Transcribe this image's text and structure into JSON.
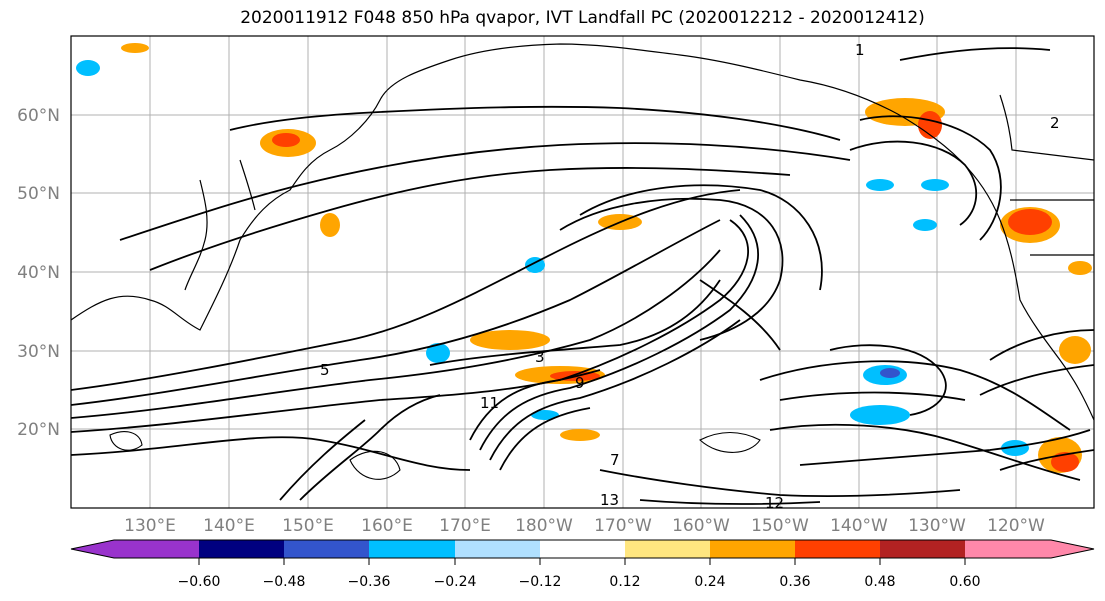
{
  "title": "2020011912 F048 850 hPa qvapor, IVT Landfall PC (2020012212 - 2020012412)",
  "map": {
    "lat_labels": [
      "60°N",
      "50°N",
      "40°N",
      "30°N",
      "20°N"
    ],
    "lon_labels": [
      "130°E",
      "140°E",
      "150°E",
      "160°E",
      "170°E",
      "180°W",
      "170°W",
      "160°W",
      "150°W",
      "140°W",
      "130°W",
      "120°W"
    ],
    "contour_labels": [
      "1",
      "2",
      "3",
      "5",
      "7",
      "9",
      "11",
      "12",
      "13"
    ]
  },
  "colorbar": {
    "tick_labels": [
      "−0.60",
      "−0.48",
      "−0.36",
      "−0.24",
      "−0.12",
      "0.12",
      "0.24",
      "0.36",
      "0.48",
      "0.60"
    ],
    "colors": [
      "#9933cc",
      "#000080",
      "#3355cc",
      "#00bfff",
      "#b0e0ff",
      "#ffffff",
      "#ffe680",
      "#ffa500",
      "#ff4000",
      "#b22222",
      "#ff88aa"
    ]
  }
}
